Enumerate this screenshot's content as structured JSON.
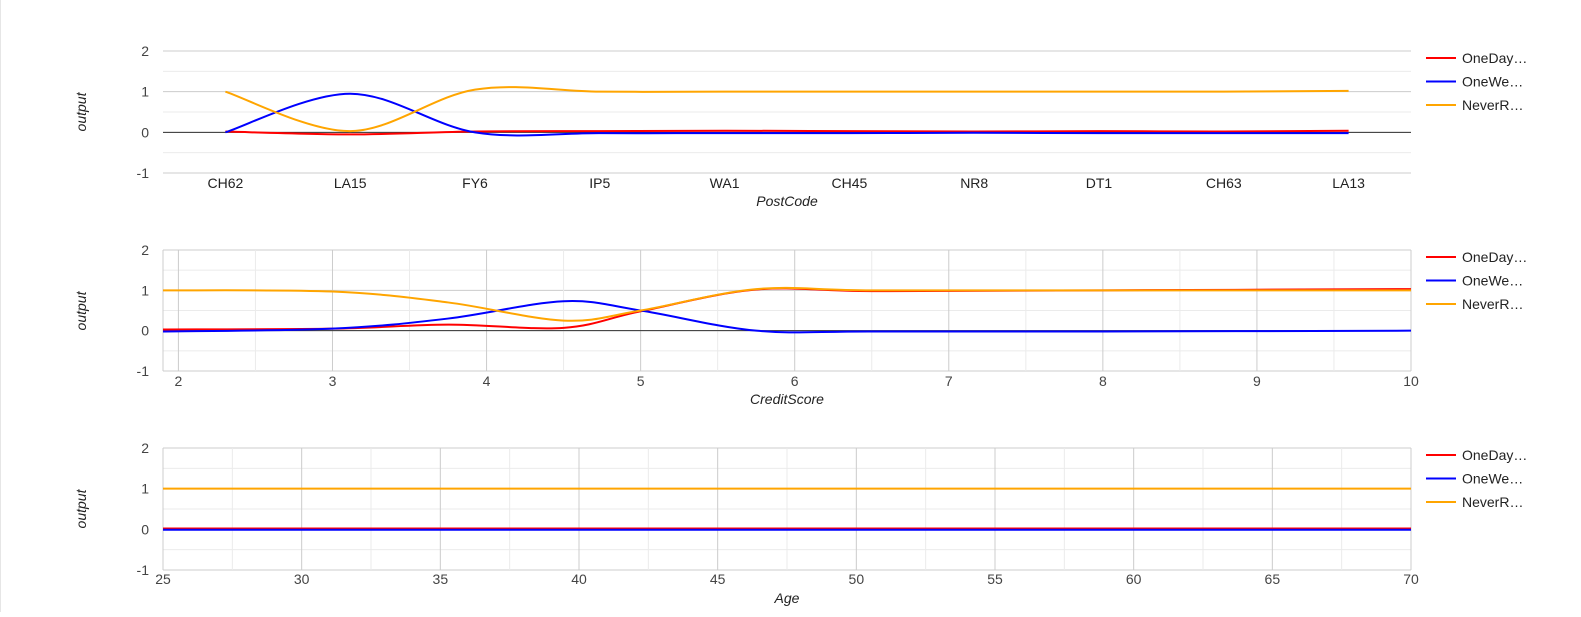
{
  "colors": {
    "OneDay": "#ff0000",
    "OneWeek": "#0000ff",
    "NeverR": "#ffa500",
    "grid_major": "#cccccc",
    "grid_minor": "#ebebeb",
    "baseline": "#333333",
    "text": "#444444"
  },
  "legend": [
    {
      "label": "OneDay…",
      "color": "#ff0000"
    },
    {
      "label": "OneWe…",
      "color": "#0000ff"
    },
    {
      "label": "NeverR…",
      "color": "#ffa500"
    }
  ],
  "chart_data": [
    {
      "type": "line",
      "xlabel": "PostCode",
      "ylabel": "output",
      "ylim": [
        -1,
        2
      ],
      "yticks": [
        "2",
        "1",
        "0",
        "-1"
      ],
      "grid": "horizontal",
      "legend_position": "right",
      "categories": [
        "CH62",
        "LA15",
        "FY6",
        "IP5",
        "WA1",
        "CH45",
        "NR8",
        "DT1",
        "CH63",
        "LA13"
      ],
      "series": [
        {
          "name": "OneDay…",
          "values": [
            0.02,
            -0.05,
            0.02,
            0.03,
            0.04,
            0.03,
            0.02,
            0.03,
            0.02,
            0.04
          ]
        },
        {
          "name": "OneWe…",
          "values": [
            0.0,
            0.95,
            0.0,
            -0.02,
            -0.02,
            -0.02,
            -0.01,
            -0.02,
            -0.02,
            -0.02
          ]
        },
        {
          "name": "NeverR…",
          "values": [
            1.0,
            0.03,
            1.05,
            1.0,
            1.0,
            1.0,
            1.0,
            1.0,
            1.0,
            1.02
          ]
        }
      ]
    },
    {
      "type": "line",
      "xlabel": "CreditScore",
      "ylabel": "output",
      "ylim": [
        -1,
        2
      ],
      "xlim": [
        1.9,
        10
      ],
      "yticks": [
        "2",
        "1",
        "0",
        "-1"
      ],
      "xticks": [
        "2",
        "3",
        "4",
        "5",
        "6",
        "7",
        "8",
        "9",
        "10"
      ],
      "grid": "both",
      "legend_position": "right",
      "x": [
        1.9,
        3,
        3.75,
        4.5,
        5,
        5.75,
        6.5,
        8,
        10
      ],
      "series": [
        {
          "name": "OneDay…",
          "values": [
            0.03,
            0.05,
            0.15,
            0.07,
            0.48,
            1.02,
            0.98,
            1.0,
            1.03
          ]
        },
        {
          "name": "OneWe…",
          "values": [
            -0.02,
            0.05,
            0.3,
            0.73,
            0.5,
            0.0,
            -0.02,
            -0.02,
            0.0
          ]
        },
        {
          "name": "NeverR…",
          "values": [
            1.0,
            0.97,
            0.7,
            0.25,
            0.5,
            1.03,
            1.0,
            1.0,
            1.0
          ]
        }
      ]
    },
    {
      "type": "line",
      "xlabel": "Age",
      "ylabel": "output",
      "ylim": [
        -1,
        2
      ],
      "xlim": [
        25,
        70
      ],
      "yticks": [
        "2",
        "1",
        "0",
        "-1"
      ],
      "xticks": [
        "25",
        "30",
        "35",
        "40",
        "45",
        "50",
        "55",
        "60",
        "65",
        "70"
      ],
      "grid": "both",
      "legend_position": "right",
      "x": [
        25,
        70
      ],
      "series": [
        {
          "name": "OneDay…",
          "values": [
            0.02,
            0.02
          ]
        },
        {
          "name": "OneWe…",
          "values": [
            -0.01,
            -0.01
          ]
        },
        {
          "name": "NeverR…",
          "values": [
            1.0,
            1.0
          ]
        }
      ]
    }
  ]
}
